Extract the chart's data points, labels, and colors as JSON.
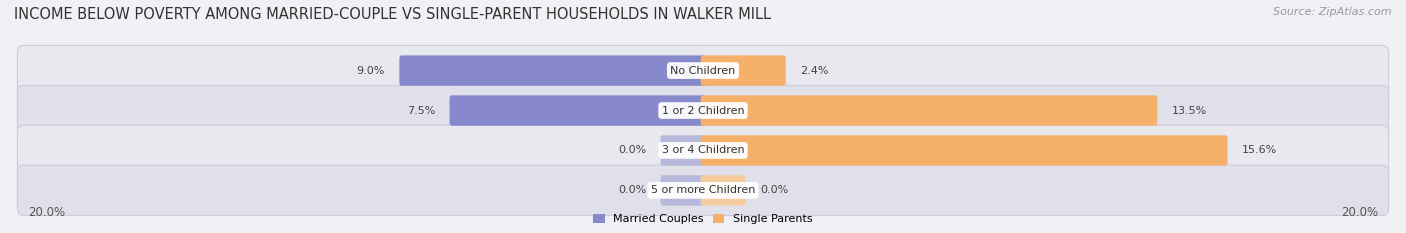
{
  "title": "INCOME BELOW POVERTY AMONG MARRIED-COUPLE VS SINGLE-PARENT HOUSEHOLDS IN WALKER MILL",
  "source": "Source: ZipAtlas.com",
  "categories": [
    "No Children",
    "1 or 2 Children",
    "3 or 4 Children",
    "5 or more Children"
  ],
  "married_values": [
    9.0,
    7.5,
    0.0,
    0.0
  ],
  "single_values": [
    2.4,
    13.5,
    15.6,
    0.0
  ],
  "married_color": "#8888cc",
  "married_color_light": "#b8b8dd",
  "single_color": "#f5b06a",
  "single_color_light": "#f5cca0",
  "row_bg_colors": [
    "#e8e8ef",
    "#e0e0ea",
    "#e8e8ef",
    "#e0e0ea"
  ],
  "axis_max": 20.0,
  "title_fontsize": 10.5,
  "source_fontsize": 8,
  "label_fontsize": 8,
  "tick_fontsize": 8.5,
  "value_fontsize": 8
}
